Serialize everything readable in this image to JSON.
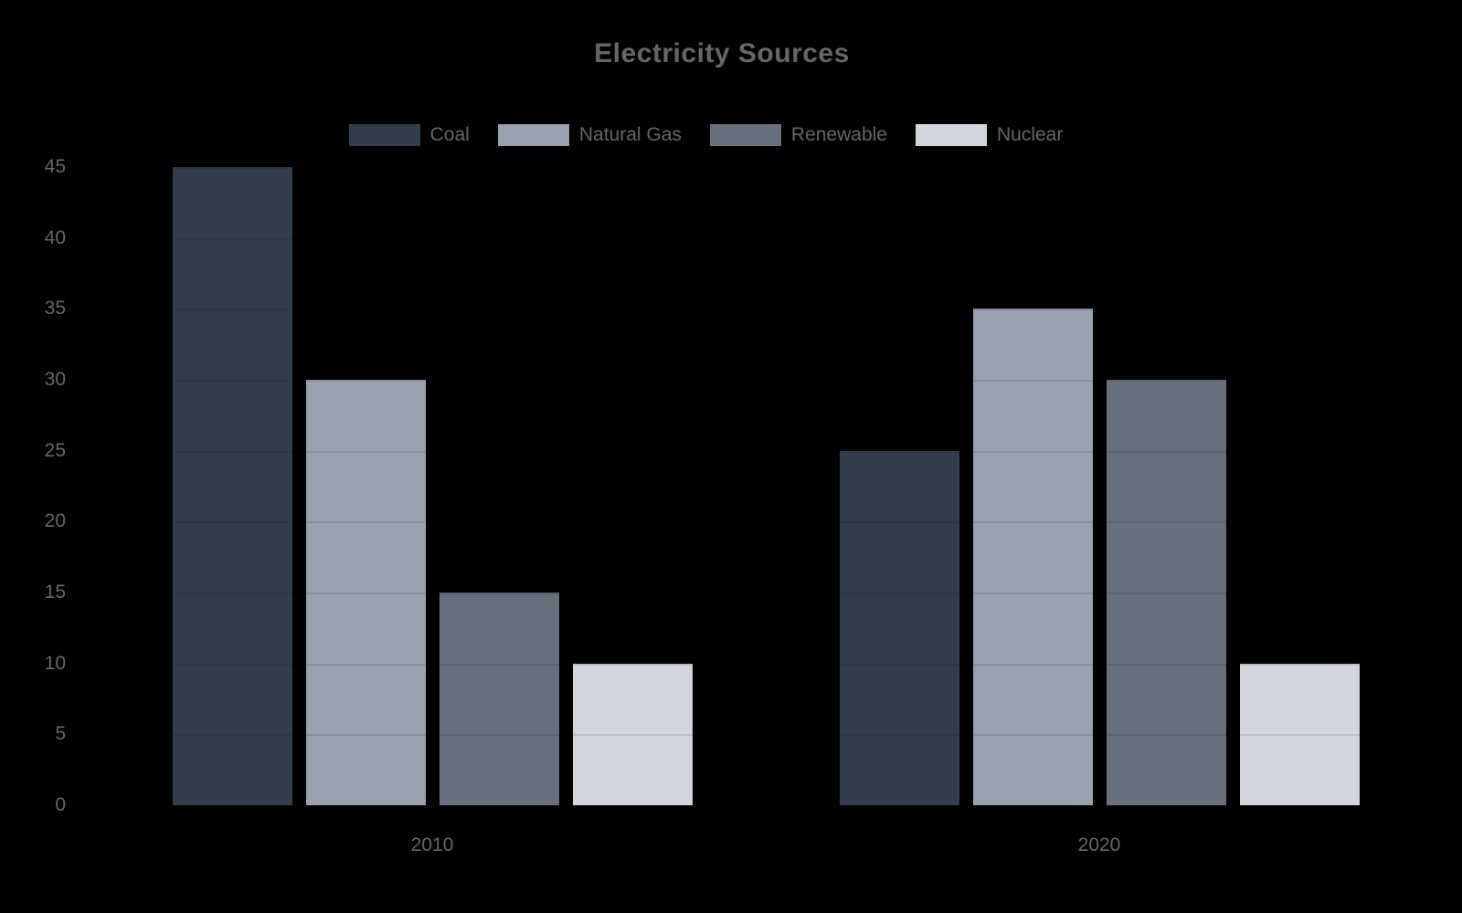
{
  "chart_data": {
    "type": "bar",
    "title": "Electricity Sources",
    "categories": [
      "2010",
      "2020"
    ],
    "series": [
      {
        "name": "Coal",
        "color": "#333e4d",
        "values": [
          45,
          25
        ]
      },
      {
        "name": "Natural Gas",
        "color": "#99a1ae",
        "values": [
          30,
          35
        ]
      },
      {
        "name": "Renewable",
        "color": "#68707e",
        "values": [
          15,
          30
        ]
      },
      {
        "name": "Nuclear",
        "color": "#d2d6dc",
        "values": [
          10,
          10
        ]
      }
    ],
    "ylim": [
      0,
      45
    ],
    "ytick_step": 5,
    "yticks": [
      0,
      5,
      10,
      15,
      20,
      25,
      30,
      35,
      40,
      45
    ],
    "grid": true,
    "legend_position": "top",
    "text_color": "#666666",
    "background_color": "#000000"
  }
}
